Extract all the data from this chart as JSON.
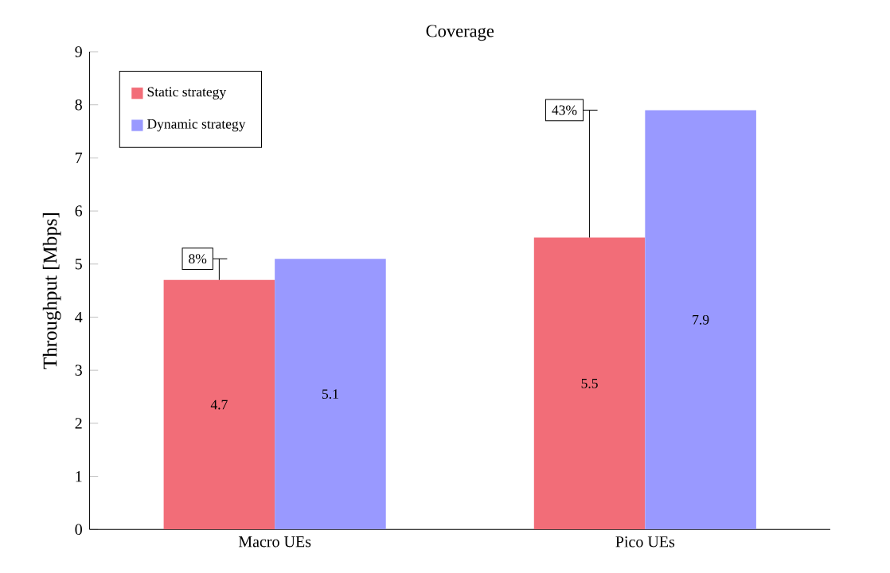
{
  "chart_data": {
    "type": "bar",
    "title": "Coverage",
    "ylabel": "Throughput [Mbps]",
    "categories": [
      "Macro UEs",
      "Pico UEs"
    ],
    "series": [
      {
        "name": "Static strategy",
        "color": "#f26d78",
        "values": [
          4.7,
          5.5
        ],
        "errors": [
          [
            4.7,
            5.1
          ],
          [
            5.5,
            7.9
          ]
        ]
      },
      {
        "name": "Dynamic strategy",
        "color": "#9999ff",
        "values": [
          5.1,
          7.9
        ]
      }
    ],
    "annotations": [
      "8%",
      "43%"
    ],
    "ylim": [
      0,
      9
    ],
    "yticks": [
      0,
      1,
      2,
      3,
      4,
      5,
      6,
      7,
      8,
      9
    ],
    "data_labels": true,
    "legend": "top left",
    "grid": false
  }
}
